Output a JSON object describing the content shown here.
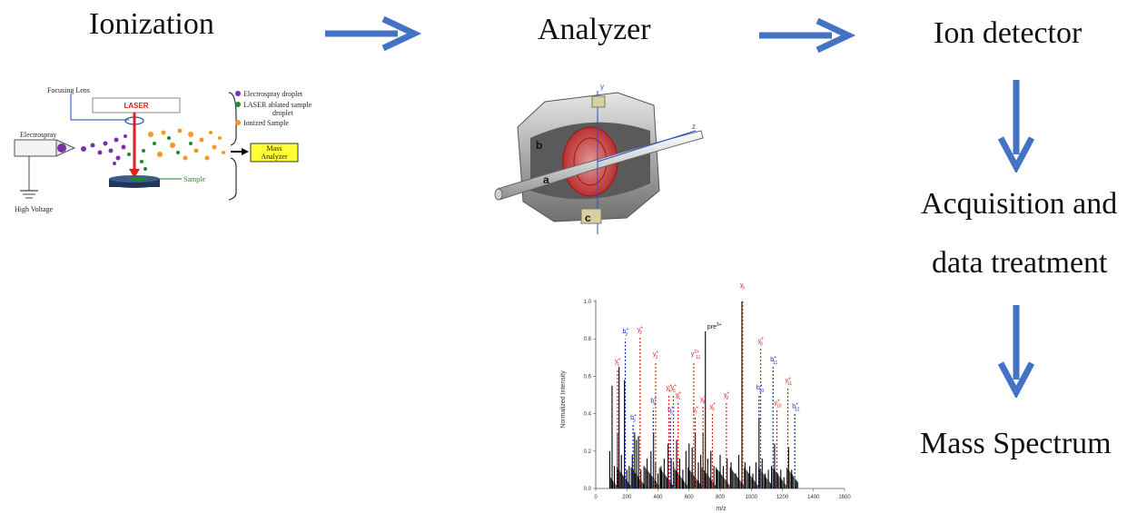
{
  "steps": {
    "ionization": "Ionization",
    "analyzer": "Analyzer",
    "ion_detector": "Ion detector",
    "acquisition_line1": "Acquisition and",
    "acquisition_line2": "data treatment",
    "mass_spectrum": "Mass Spectrum"
  },
  "ionization_figure": {
    "focusing_lens": "Focusing Lens",
    "laser": "LASER",
    "electrospray": "Electrospray",
    "high_voltage": "High Voltage",
    "sample": "Sample",
    "mass_analyzer_line1": "Mass",
    "mass_analyzer_line2": "Analyzer",
    "legend": [
      {
        "label": "Electrospray droplet",
        "color": "#7b2fa8"
      },
      {
        "label": "LASER ablated sample",
        "label2": "droplet",
        "color": "#1f8a2e"
      },
      {
        "label": "Ionized Sample",
        "color": "#f39a21"
      }
    ]
  },
  "analyzer_figure": {
    "labels": {
      "a": "a",
      "b": "b",
      "c": "c",
      "y": "y",
      "z": "z"
    }
  },
  "colors": {
    "arrow": "#4472c4",
    "laser": "#e0201b",
    "mass_analyzer_box": "#ffff33",
    "b_ion": "#1a2fd0",
    "y_ion": "#e02020",
    "spectrum_line": "#000000"
  },
  "chart_data": {
    "type": "bar",
    "xlabel": "m/z",
    "ylabel": "Normalized Intensity",
    "xlim": [
      0,
      1600
    ],
    "ylim": [
      0,
      1.0
    ],
    "x_ticks": [
      0,
      200,
      400,
      600,
      800,
      1000,
      1200,
      1400,
      1600
    ],
    "y_ticks": [
      "0.0",
      "0.2",
      "0.4",
      "0.6",
      "0.8",
      "1.0"
    ],
    "baseline_peaks": [
      [
        90,
        0.2
      ],
      [
        105,
        0.55
      ],
      [
        120,
        0.12
      ],
      [
        140,
        0.3
      ],
      [
        150,
        0.65
      ],
      [
        165,
        0.18
      ],
      [
        185,
        0.58
      ],
      [
        200,
        0.1
      ],
      [
        215,
        0.12
      ],
      [
        235,
        0.18
      ],
      [
        250,
        0.3
      ],
      [
        262,
        0.26
      ],
      [
        275,
        0.28
      ],
      [
        290,
        0.1
      ],
      [
        310,
        0.12
      ],
      [
        330,
        0.16
      ],
      [
        355,
        0.2
      ],
      [
        372,
        0.3
      ],
      [
        385,
        0.14
      ],
      [
        400,
        0.08
      ],
      [
        420,
        0.12
      ],
      [
        440,
        0.16
      ],
      [
        465,
        0.24
      ],
      [
        485,
        0.16
      ],
      [
        500,
        0.14
      ],
      [
        520,
        0.26
      ],
      [
        540,
        0.16
      ],
      [
        560,
        0.1
      ],
      [
        580,
        0.2
      ],
      [
        600,
        0.24
      ],
      [
        620,
        0.22
      ],
      [
        640,
        0.3
      ],
      [
        660,
        0.14
      ],
      [
        675,
        0.18
      ],
      [
        690,
        0.3
      ],
      [
        705,
        0.84
      ],
      [
        720,
        0.16
      ],
      [
        740,
        0.2
      ],
      [
        760,
        0.12
      ],
      [
        780,
        0.1
      ],
      [
        800,
        0.18
      ],
      [
        820,
        0.12
      ],
      [
        845,
        0.16
      ],
      [
        870,
        0.14
      ],
      [
        900,
        0.08
      ],
      [
        920,
        0.18
      ],
      [
        940,
        1.0
      ],
      [
        960,
        0.14
      ],
      [
        990,
        0.12
      ],
      [
        1010,
        0.08
      ],
      [
        1030,
        0.14
      ],
      [
        1050,
        0.38
      ],
      [
        1070,
        0.16
      ],
      [
        1090,
        0.08
      ],
      [
        1110,
        0.1
      ],
      [
        1130,
        0.12
      ],
      [
        1150,
        0.24
      ],
      [
        1170,
        0.08
      ],
      [
        1190,
        0.1
      ],
      [
        1210,
        0.06
      ],
      [
        1240,
        0.22
      ],
      [
        1260,
        0.1
      ],
      [
        1290,
        0.04
      ]
    ],
    "annotated_peaks": [
      {
        "label": "y",
        "sub": "1",
        "sup": "+",
        "x": 140,
        "y": 0.64,
        "series": "y"
      },
      {
        "label": "b",
        "sub": "2",
        "sup": "+",
        "x": 190,
        "y": 0.8,
        "series": "b"
      },
      {
        "label": "b",
        "sub": "3",
        "sup": "+",
        "x": 240,
        "y": 0.34,
        "series": "b"
      },
      {
        "label": "y",
        "sub": "2",
        "sup": "+",
        "x": 285,
        "y": 0.81,
        "series": "y"
      },
      {
        "label": "b",
        "sub": "4",
        "sup": "+",
        "x": 370,
        "y": 0.43,
        "series": "b"
      },
      {
        "label": "y",
        "sub": "3",
        "sup": "+",
        "x": 385,
        "y": 0.68,
        "series": "y"
      },
      {
        "label": "b",
        "sub": "5",
        "sup": "+",
        "x": 480,
        "y": 0.38,
        "series": "b"
      },
      {
        "label": "y",
        "sub": "4",
        "sup": "+",
        "x": 470,
        "y": 0.5,
        "series": "y"
      },
      {
        "label": "y",
        "sub": "5",
        "sup": "+",
        "x": 500,
        "y": 0.5,
        "series": "y"
      },
      {
        "label": "y",
        "sub": "6",
        "sup": "+",
        "x": 530,
        "y": 0.46,
        "series": "y"
      },
      {
        "label": "y",
        "sub": "11",
        "sup": "2+",
        "x": 630,
        "y": 0.68,
        "series": "y"
      },
      {
        "label": "y",
        "sub": "7",
        "sup": "+",
        "x": 640,
        "y": 0.38,
        "series": "y"
      },
      {
        "label": "y",
        "sub": "8",
        "sup": "+",
        "x": 690,
        "y": 0.44,
        "series": "y"
      },
      {
        "label": "y",
        "sub": "9",
        "sup": "+",
        "x": 750,
        "y": 0.4,
        "series": "y"
      },
      {
        "label": "y",
        "sub": "9",
        "sup": "+",
        "x": 840,
        "y": 0.46,
        "series": "y"
      },
      {
        "label": "y",
        "sub": "6",
        "sup": "+",
        "x": 945,
        "y": 1.05,
        "series": "y"
      },
      {
        "label": "b",
        "sub": "10",
        "sup": "+",
        "x": 1050,
        "y": 0.5,
        "series": "b"
      },
      {
        "label": "y",
        "sub": "8",
        "sup": "+",
        "x": 1060,
        "y": 0.75,
        "series": "y"
      },
      {
        "label": "b",
        "sub": "11",
        "sup": "+",
        "x": 1140,
        "y": 0.65,
        "series": "b"
      },
      {
        "label": "y",
        "sub": "10",
        "sup": "+",
        "x": 1165,
        "y": 0.42,
        "series": "y"
      },
      {
        "label": "y",
        "sub": "11",
        "sup": "+",
        "x": 1235,
        "y": 0.54,
        "series": "y"
      },
      {
        "label": "b",
        "sub": "12",
        "sup": "+",
        "x": 1280,
        "y": 0.4,
        "series": "b"
      }
    ],
    "precursor_label": "pre",
    "precursor_sup": "3+",
    "precursor_x": 705
  }
}
